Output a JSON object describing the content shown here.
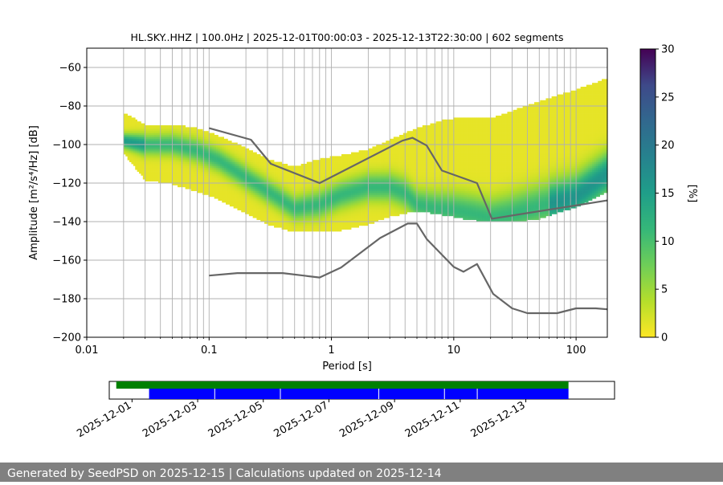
{
  "chart_data": {
    "type": "heatmap",
    "title": "HL.SKY..HHZ | 100.0Hz | 2025-12-01T00:00:03 - 2025-12-13T22:30:00 | 602 segments",
    "xlabel": "Period [s]",
    "ylabel": "Amplitude [m²/s⁴/Hz] [dB]",
    "x_scale": "log",
    "xlim": [
      0.01,
      180
    ],
    "ylim": [
      -200,
      -50
    ],
    "x_ticks": [
      0.01,
      0.1,
      1,
      10,
      100
    ],
    "x_tick_labels": [
      "0.01",
      "0.1",
      "1",
      "10",
      "100"
    ],
    "y_ticks": [
      -200,
      -180,
      -160,
      -140,
      -120,
      -100,
      -80,
      -60
    ],
    "y_tick_labels": [
      "−200",
      "−180",
      "−160",
      "−140",
      "−120",
      "−100",
      "−80",
      "−60"
    ],
    "grid": true,
    "colorbar": {
      "label": "[%]",
      "range": [
        0,
        30
      ],
      "ticks": [
        0,
        5,
        10,
        15,
        20,
        25,
        30
      ],
      "colormap": "viridis_r"
    },
    "density": {
      "period_range": [
        0.02,
        180
      ],
      "mode_curve": {
        "period": [
          0.02,
          0.03,
          0.05,
          0.08,
          0.12,
          0.2,
          0.3,
          0.5,
          0.8,
          1.2,
          2,
          3,
          4,
          5,
          7,
          10,
          15,
          20,
          30,
          50,
          100,
          180
        ],
        "db": [
          -98,
          -100,
          -100,
          -103,
          -108,
          -117,
          -124,
          -133,
          -131,
          -126,
          -122,
          -122,
          -125,
          -131,
          -133,
          -134,
          -136,
          -138,
          -136,
          -132,
          -127,
          -115
        ]
      },
      "upper_edge": {
        "period": [
          0.02,
          0.03,
          0.05,
          0.08,
          0.12,
          0.2,
          0.3,
          0.5,
          0.8,
          1.2,
          2,
          3,
          5,
          8,
          12,
          20,
          30,
          50,
          100,
          180
        ],
        "db": [
          -84,
          -90,
          -90,
          -92,
          -96,
          -102,
          -108,
          -112,
          -108,
          -106,
          -103,
          -98,
          -92,
          -88,
          -86,
          -87,
          -83,
          -78,
          -72,
          -66
        ]
      },
      "lower_edge": {
        "period": [
          0.02,
          0.03,
          0.05,
          0.08,
          0.12,
          0.2,
          0.3,
          0.5,
          0.8,
          1.2,
          2,
          3,
          5,
          8,
          12,
          20,
          30,
          50,
          100,
          180
        ],
        "db": [
          -104,
          -118,
          -120,
          -124,
          -128,
          -135,
          -141,
          -145,
          -145,
          -144,
          -141,
          -137,
          -134,
          -136,
          -138,
          -140,
          -140,
          -138,
          -132,
          -124
        ]
      }
    },
    "series": [
      {
        "name": "",
        "period": [
          0.1,
          0.22,
          0.32,
          0.8,
          3.8,
          4.6,
          6,
          8,
          15.5,
          20.5,
          180
        ],
        "db": [
          -91.5,
          -97.5,
          -110,
          -120,
          -98,
          -96.5,
          -100.5,
          -113.5,
          -120,
          -138.5,
          -129
        ]
      },
      {
        "name": "",
        "period": [
          0.1,
          0.17,
          0.4,
          0.8,
          1.2,
          2.5,
          4.2,
          5,
          6,
          10,
          12,
          15.5,
          21,
          30,
          40,
          70,
          100,
          145,
          180
        ],
        "db": [
          -168,
          -166.7,
          -166.7,
          -169,
          -163.8,
          -148.5,
          -141,
          -141,
          -149,
          -163.5,
          -166,
          -162,
          -177.5,
          -185,
          -187.5,
          -187.5,
          -185,
          -185,
          -185.5
        ]
      }
    ],
    "availability": {
      "date_ticks": [
        "2025-12-01",
        "2025-12-03",
        "2025-12-05",
        "2025-12-07",
        "2025-12-09",
        "2025-12-11",
        "2025-12-13"
      ],
      "green_bar": {
        "color": "#008000",
        "start_day": 0.52,
        "end_day": 14.3
      },
      "blue_bar": {
        "color": "#0000ff",
        "start_day": 1.52,
        "end_day": 14.3,
        "gap_days": [
          3.52,
          5.52,
          8.52,
          10.52,
          11.52
        ]
      }
    }
  },
  "footer": {
    "text": "Generated by SeedPSD on 2025-12-15 | Calculations updated on 2025-12-14"
  }
}
